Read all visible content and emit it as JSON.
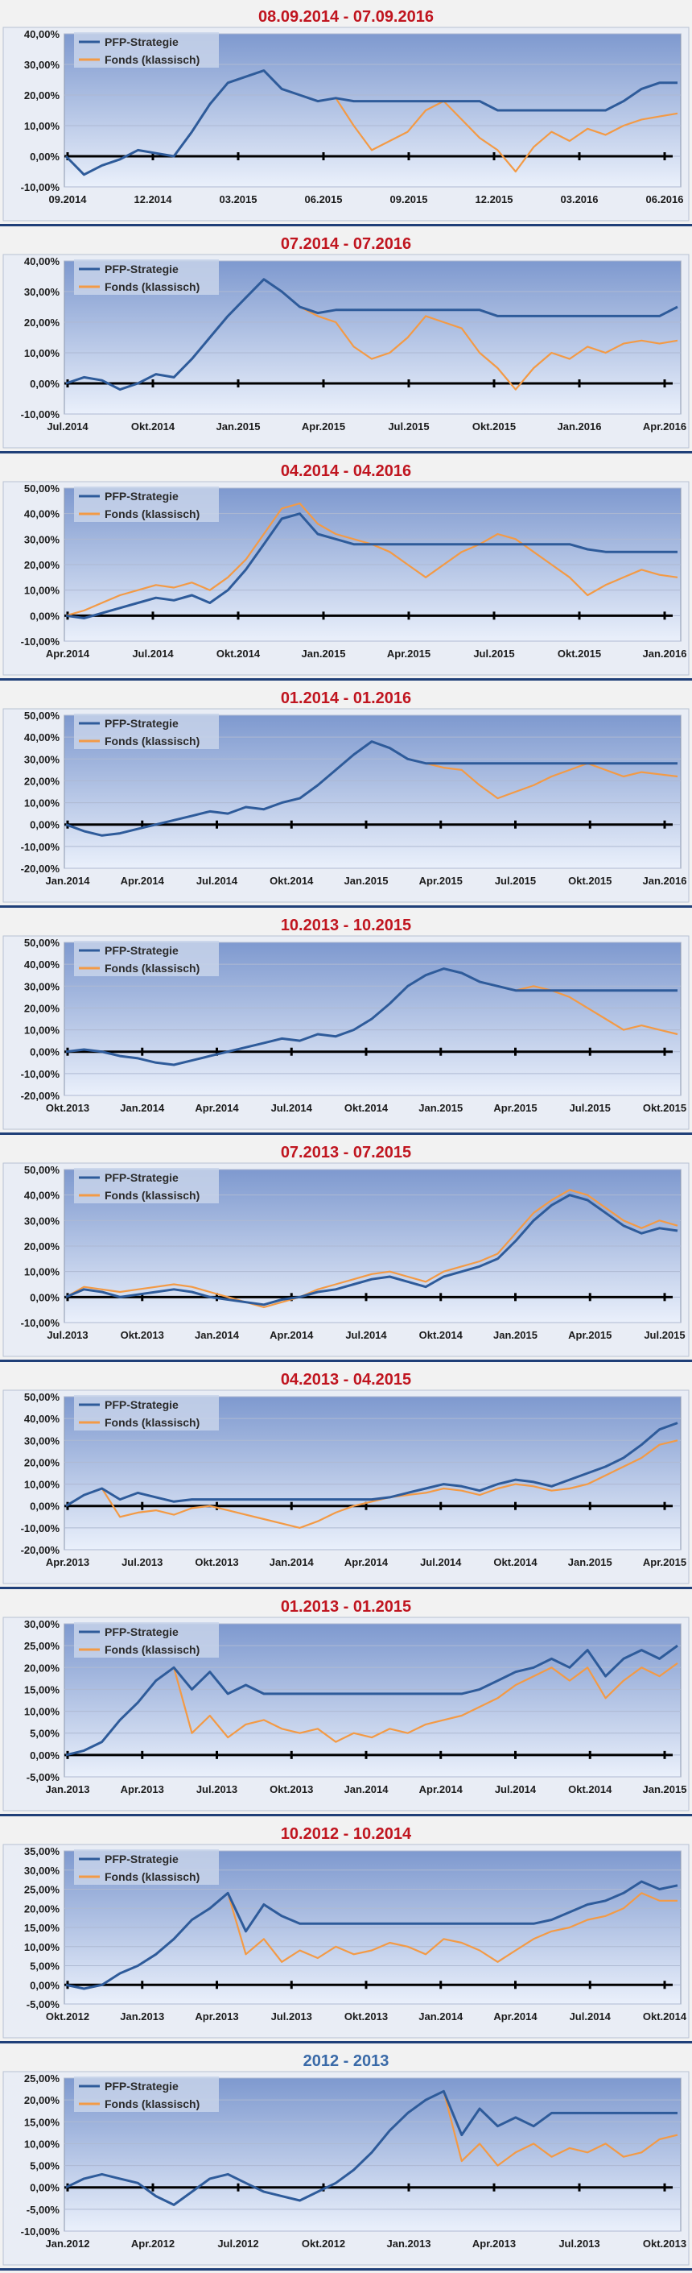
{
  "colors": {
    "strategy": "#2e5b9a",
    "fund": "#f39a45",
    "title_red": "#c0151f",
    "title_blue": "#3a6aa8",
    "divider": "#1f3f78"
  },
  "chart_data": [
    {
      "type": "line",
      "title": "08.09.2014 - 07.09.2016",
      "title_color": "#c0151f",
      "legend": [
        "PFP-Strategie",
        "Fonds (klassisch)"
      ],
      "y_ticks": [
        "40,00%",
        "30,00%",
        "20,00%",
        "10,00%",
        "0,00%",
        "-10,00%"
      ],
      "ylim": [
        -10,
        40
      ],
      "x_labels": [
        "09.2014",
        "12.2014",
        "03.2015",
        "06.2015",
        "09.2015",
        "12.2015",
        "03.2016",
        "06.2016"
      ],
      "series": [
        {
          "name": "PFP-Strategie",
          "values": [
            0,
            -6,
            -3,
            -1,
            2,
            1,
            0,
            8,
            17,
            24,
            26,
            28,
            22,
            20,
            18,
            19,
            18,
            18,
            18,
            18,
            18,
            18,
            18,
            18,
            15,
            15,
            15,
            15,
            15,
            15,
            15,
            18,
            22,
            24,
            24
          ]
        },
        {
          "name": "Fonds (klassisch)",
          "values": [
            0,
            -6,
            -3,
            -1,
            2,
            1,
            0,
            8,
            17,
            24,
            26,
            28,
            22,
            20,
            18,
            19,
            10,
            2,
            5,
            8,
            15,
            18,
            12,
            6,
            2,
            -5,
            3,
            8,
            5,
            9,
            7,
            10,
            12,
            13,
            14
          ]
        }
      ]
    },
    {
      "type": "line",
      "title": "07.2014 - 07.2016",
      "title_color": "#c0151f",
      "legend": [
        "PFP-Strategie",
        "Fonds (klassisch)"
      ],
      "y_ticks": [
        "40,00%",
        "30,00%",
        "20,00%",
        "10,00%",
        "0,00%",
        "-10,00%"
      ],
      "ylim": [
        -10,
        40
      ],
      "x_labels": [
        "Jul.2014",
        "Okt.2014",
        "Jan.2015",
        "Apr.2015",
        "Jul.2015",
        "Okt.2015",
        "Jan.2016",
        "Apr.2016"
      ],
      "series": [
        {
          "name": "PFP-Strategie",
          "values": [
            0,
            2,
            1,
            -2,
            0,
            3,
            2,
            8,
            15,
            22,
            28,
            34,
            30,
            25,
            23,
            24,
            24,
            24,
            24,
            24,
            24,
            24,
            24,
            24,
            22,
            22,
            22,
            22,
            22,
            22,
            22,
            22,
            22,
            22,
            25
          ]
        },
        {
          "name": "Fonds (klassisch)",
          "values": [
            0,
            2,
            1,
            -2,
            0,
            3,
            2,
            8,
            15,
            22,
            28,
            34,
            30,
            25,
            22,
            20,
            12,
            8,
            10,
            15,
            22,
            20,
            18,
            10,
            5,
            -2,
            5,
            10,
            8,
            12,
            10,
            13,
            14,
            13,
            14
          ]
        }
      ]
    },
    {
      "type": "line",
      "title": "04.2014 - 04.2016",
      "title_color": "#c0151f",
      "legend": [
        "PFP-Strategie",
        "Fonds (klassisch)"
      ],
      "y_ticks": [
        "50,00%",
        "40,00%",
        "30,00%",
        "20,00%",
        "10,00%",
        "0,00%",
        "-10,00%"
      ],
      "ylim": [
        -10,
        50
      ],
      "x_labels": [
        "Apr.2014",
        "Jul.2014",
        "Okt.2014",
        "Jan.2015",
        "Apr.2015",
        "Jul.2015",
        "Okt.2015",
        "Jan.2016"
      ],
      "series": [
        {
          "name": "PFP-Strategie",
          "values": [
            0,
            -1,
            1,
            3,
            5,
            7,
            6,
            8,
            5,
            10,
            18,
            28,
            38,
            40,
            32,
            30,
            28,
            28,
            28,
            28,
            28,
            28,
            28,
            28,
            28,
            28,
            28,
            28,
            28,
            26,
            25,
            25,
            25,
            25,
            25
          ]
        },
        {
          "name": "Fonds (klassisch)",
          "values": [
            0,
            2,
            5,
            8,
            10,
            12,
            11,
            13,
            10,
            15,
            22,
            32,
            42,
            44,
            36,
            32,
            30,
            28,
            25,
            20,
            15,
            20,
            25,
            28,
            32,
            30,
            25,
            20,
            15,
            8,
            12,
            15,
            18,
            16,
            15
          ]
        }
      ]
    },
    {
      "type": "line",
      "title": "01.2014 - 01.2016",
      "title_color": "#c0151f",
      "legend": [
        "PFP-Strategie",
        "Fonds (klassisch)"
      ],
      "y_ticks": [
        "50,00%",
        "40,00%",
        "30,00%",
        "20,00%",
        "10,00%",
        "0,00%",
        "-10,00%",
        "-20,00%"
      ],
      "ylim": [
        -20,
        50
      ],
      "x_labels": [
        "Jan.2014",
        "Apr.2014",
        "Jul.2014",
        "Okt.2014",
        "Jan.2015",
        "Apr.2015",
        "Jul.2015",
        "Okt.2015",
        "Jan.2016"
      ],
      "series": [
        {
          "name": "PFP-Strategie",
          "values": [
            0,
            -3,
            -5,
            -4,
            -2,
            0,
            2,
            4,
            6,
            5,
            8,
            7,
            10,
            12,
            18,
            25,
            32,
            38,
            35,
            30,
            28,
            28,
            28,
            28,
            28,
            28,
            28,
            28,
            28,
            28,
            28,
            28,
            28,
            28,
            28
          ]
        },
        {
          "name": "Fonds (klassisch)",
          "values": [
            0,
            -3,
            -5,
            -4,
            -2,
            0,
            2,
            4,
            6,
            5,
            8,
            7,
            10,
            12,
            18,
            25,
            32,
            38,
            35,
            30,
            28,
            26,
            25,
            18,
            12,
            15,
            18,
            22,
            25,
            28,
            25,
            22,
            24,
            23,
            22
          ]
        }
      ]
    },
    {
      "type": "line",
      "title": "10.2013 - 10.2015",
      "title_color": "#c0151f",
      "legend": [
        "PFP-Strategie",
        "Fonds (klassisch)"
      ],
      "y_ticks": [
        "50,00%",
        "40,00%",
        "30,00%",
        "20,00%",
        "10,00%",
        "0,00%",
        "-10,00%",
        "-20,00%"
      ],
      "ylim": [
        -20,
        50
      ],
      "x_labels": [
        "Okt.2013",
        "Jan.2014",
        "Apr.2014",
        "Jul.2014",
        "Okt.2014",
        "Jan.2015",
        "Apr.2015",
        "Jul.2015",
        "Okt.2015"
      ],
      "series": [
        {
          "name": "PFP-Strategie",
          "values": [
            0,
            1,
            0,
            -2,
            -3,
            -5,
            -6,
            -4,
            -2,
            0,
            2,
            4,
            6,
            5,
            8,
            7,
            10,
            15,
            22,
            30,
            35,
            38,
            36,
            32,
            30,
            28,
            28,
            28,
            28,
            28,
            28,
            28,
            28,
            28,
            28
          ]
        },
        {
          "name": "Fonds (klassisch)",
          "values": [
            0,
            1,
            0,
            -2,
            -3,
            -5,
            -6,
            -4,
            -2,
            0,
            2,
            4,
            6,
            5,
            8,
            7,
            10,
            15,
            22,
            30,
            35,
            38,
            36,
            32,
            30,
            28,
            30,
            28,
            25,
            20,
            15,
            10,
            12,
            10,
            8
          ]
        }
      ]
    },
    {
      "type": "line",
      "title": "07.2013 - 07.2015",
      "title_color": "#c0151f",
      "legend": [
        "PFP-Strategie",
        "Fonds (klassisch)"
      ],
      "y_ticks": [
        "50,00%",
        "40,00%",
        "30,00%",
        "20,00%",
        "10,00%",
        "0,00%",
        "-10,00%"
      ],
      "ylim": [
        -10,
        50
      ],
      "x_labels": [
        "Jul.2013",
        "Okt.2013",
        "Jan.2014",
        "Apr.2014",
        "Jul.2014",
        "Okt.2014",
        "Jan.2015",
        "Apr.2015",
        "Jul.2015"
      ],
      "series": [
        {
          "name": "PFP-Strategie",
          "values": [
            0,
            3,
            2,
            0,
            1,
            2,
            3,
            2,
            0,
            -1,
            -2,
            -3,
            -1,
            0,
            2,
            3,
            5,
            7,
            8,
            6,
            4,
            8,
            10,
            12,
            15,
            22,
            30,
            36,
            40,
            38,
            33,
            28,
            25,
            27,
            26
          ]
        },
        {
          "name": "Fonds (klassisch)",
          "values": [
            0,
            4,
            3,
            2,
            3,
            4,
            5,
            4,
            2,
            0,
            -2,
            -4,
            -2,
            0,
            3,
            5,
            7,
            9,
            10,
            8,
            6,
            10,
            12,
            14,
            17,
            25,
            33,
            38,
            42,
            40,
            35,
            30,
            27,
            30,
            28
          ]
        }
      ]
    },
    {
      "type": "line",
      "title": "04.2013 - 04.2015",
      "title_color": "#c0151f",
      "legend": [
        "PFP-Strategie",
        "Fonds (klassisch)"
      ],
      "y_ticks": [
        "50,00%",
        "40,00%",
        "30,00%",
        "20,00%",
        "10,00%",
        "0,00%",
        "-10,00%",
        "-20,00%"
      ],
      "ylim": [
        -20,
        50
      ],
      "x_labels": [
        "Apr.2013",
        "Jul.2013",
        "Okt.2013",
        "Jan.2014",
        "Apr.2014",
        "Jul.2014",
        "Okt.2014",
        "Jan.2015",
        "Apr.2015"
      ],
      "series": [
        {
          "name": "PFP-Strategie",
          "values": [
            0,
            5,
            8,
            3,
            6,
            4,
            2,
            3,
            3,
            3,
            3,
            3,
            3,
            3,
            3,
            3,
            3,
            3,
            4,
            6,
            8,
            10,
            9,
            7,
            10,
            12,
            11,
            9,
            12,
            15,
            18,
            22,
            28,
            35,
            38
          ]
        },
        {
          "name": "Fonds (klassisch)",
          "values": [
            0,
            5,
            8,
            -5,
            -3,
            -2,
            -4,
            -1,
            0,
            -2,
            -4,
            -6,
            -8,
            -10,
            -7,
            -3,
            0,
            2,
            4,
            5,
            6,
            8,
            7,
            5,
            8,
            10,
            9,
            7,
            8,
            10,
            14,
            18,
            22,
            28,
            30
          ]
        }
      ]
    },
    {
      "type": "line",
      "title": "01.2013 - 01.2015",
      "title_color": "#c0151f",
      "legend": [
        "PFP-Strategie",
        "Fonds (klassisch)"
      ],
      "y_ticks": [
        "30,00%",
        "25,00%",
        "20,00%",
        "15,00%",
        "10,00%",
        "5,00%",
        "0,00%",
        "-5,00%"
      ],
      "ylim": [
        -5,
        30
      ],
      "x_labels": [
        "Jan.2013",
        "Apr.2013",
        "Jul.2013",
        "Okt.2013",
        "Jan.2014",
        "Apr.2014",
        "Jul.2014",
        "Okt.2014",
        "Jan.2015"
      ],
      "series": [
        {
          "name": "PFP-Strategie",
          "values": [
            0,
            1,
            3,
            8,
            12,
            17,
            20,
            15,
            19,
            14,
            16,
            14,
            14,
            14,
            14,
            14,
            14,
            14,
            14,
            14,
            14,
            14,
            14,
            15,
            17,
            19,
            20,
            22,
            20,
            24,
            18,
            22,
            24,
            22,
            25
          ]
        },
        {
          "name": "Fonds (klassisch)",
          "values": [
            0,
            1,
            3,
            8,
            12,
            17,
            20,
            5,
            9,
            4,
            7,
            8,
            6,
            5,
            6,
            3,
            5,
            4,
            6,
            5,
            7,
            8,
            9,
            11,
            13,
            16,
            18,
            20,
            17,
            20,
            13,
            17,
            20,
            18,
            21
          ]
        }
      ]
    },
    {
      "type": "line",
      "title": "10.2012 - 10.2014",
      "title_color": "#c0151f",
      "legend": [
        "PFP-Strategie",
        "Fonds (klassisch)"
      ],
      "y_ticks": [
        "35,00%",
        "30,00%",
        "25,00%",
        "20,00%",
        "15,00%",
        "10,00%",
        "5,00%",
        "0,00%",
        "-5,00%"
      ],
      "ylim": [
        -5,
        35
      ],
      "x_labels": [
        "Okt.2012",
        "Jan.2013",
        "Apr.2013",
        "Jul.2013",
        "Okt.2013",
        "Jan.2014",
        "Apr.2014",
        "Jul.2014",
        "Okt.2014"
      ],
      "series": [
        {
          "name": "PFP-Strategie",
          "values": [
            0,
            -1,
            0,
            3,
            5,
            8,
            12,
            17,
            20,
            24,
            14,
            21,
            18,
            16,
            16,
            16,
            16,
            16,
            16,
            16,
            16,
            16,
            16,
            16,
            16,
            16,
            16,
            17,
            19,
            21,
            22,
            24,
            27,
            25,
            26
          ]
        },
        {
          "name": "Fonds (klassisch)",
          "values": [
            0,
            -1,
            0,
            3,
            5,
            8,
            12,
            17,
            20,
            24,
            8,
            12,
            6,
            9,
            7,
            10,
            8,
            9,
            11,
            10,
            8,
            12,
            11,
            9,
            6,
            9,
            12,
            14,
            15,
            17,
            18,
            20,
            24,
            22,
            22
          ]
        }
      ]
    },
    {
      "type": "line",
      "title": "2012 - 2013",
      "title_color": "#3a6aa8",
      "legend": [
        "PFP-Strategie",
        "Fonds (klassisch)"
      ],
      "y_ticks": [
        "25,00%",
        "20,00%",
        "15,00%",
        "10,00%",
        "5,00%",
        "0,00%",
        "-5,00%",
        "-10,00%"
      ],
      "ylim": [
        -10,
        25
      ],
      "x_labels": [
        "Jan.2012",
        "Apr.2012",
        "Jul.2012",
        "Okt.2012",
        "Jan.2013",
        "Apr.2013",
        "Jul.2013",
        "Okt.2013"
      ],
      "series": [
        {
          "name": "PFP-Strategie",
          "values": [
            0,
            2,
            3,
            2,
            1,
            -2,
            -4,
            -1,
            2,
            3,
            1,
            -1,
            -2,
            -3,
            -1,
            1,
            4,
            8,
            13,
            17,
            20,
            22,
            12,
            18,
            14,
            16,
            14,
            17,
            17,
            17,
            17,
            17,
            17,
            17,
            17
          ]
        },
        {
          "name": "Fonds (klassisch)",
          "values": [
            0,
            2,
            3,
            2,
            1,
            -2,
            -4,
            -1,
            2,
            3,
            1,
            -1,
            -2,
            -3,
            -1,
            1,
            4,
            8,
            13,
            17,
            20,
            22,
            6,
            10,
            5,
            8,
            10,
            7,
            9,
            8,
            10,
            7,
            8,
            11,
            12
          ]
        }
      ]
    }
  ]
}
